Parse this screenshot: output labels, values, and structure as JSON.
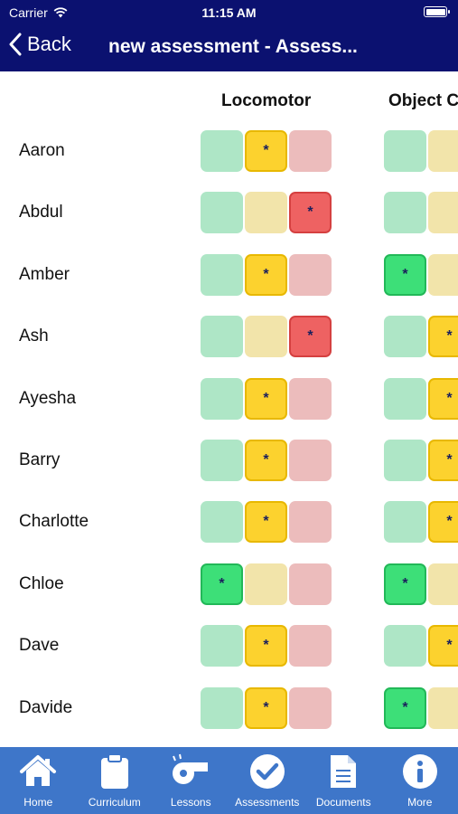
{
  "status": {
    "carrier": "Carrier",
    "time": "11:15 AM"
  },
  "nav": {
    "back_label": "Back",
    "title": "new assessment - Assess..."
  },
  "columns": [
    "Locomotor",
    "Object C"
  ],
  "levels": [
    "green",
    "yellow",
    "red"
  ],
  "marker": "*",
  "students": [
    {
      "name": "Aaron",
      "scores": [
        "yellow",
        "none"
      ]
    },
    {
      "name": "Abdul",
      "scores": [
        "red",
        "none"
      ]
    },
    {
      "name": "Amber",
      "scores": [
        "yellow",
        "green"
      ]
    },
    {
      "name": "Ash",
      "scores": [
        "red",
        "yellow"
      ]
    },
    {
      "name": "Ayesha",
      "scores": [
        "yellow",
        "yellow"
      ]
    },
    {
      "name": "Barry",
      "scores": [
        "yellow",
        "yellow"
      ]
    },
    {
      "name": "Charlotte",
      "scores": [
        "yellow",
        "yellow"
      ]
    },
    {
      "name": "Chloe",
      "scores": [
        "green",
        "green"
      ]
    },
    {
      "name": "Dave",
      "scores": [
        "yellow",
        "yellow"
      ]
    },
    {
      "name": "Davide",
      "scores": [
        "yellow",
        "green"
      ]
    }
  ],
  "tabs": [
    {
      "label": "Home",
      "icon": "home-icon"
    },
    {
      "label": "Curriculum",
      "icon": "clipboard-icon"
    },
    {
      "label": "Lessons",
      "icon": "whistle-icon"
    },
    {
      "label": "Assessments",
      "icon": "check-circle-icon"
    },
    {
      "label": "Documents",
      "icon": "document-icon"
    },
    {
      "label": "More",
      "icon": "info-icon"
    }
  ],
  "colors": {
    "nav_bg": "#0b1170",
    "tab_bg": "#3e76c9",
    "green": "#3ddf78",
    "yellow": "#fcd22e",
    "red": "#ee6262"
  }
}
